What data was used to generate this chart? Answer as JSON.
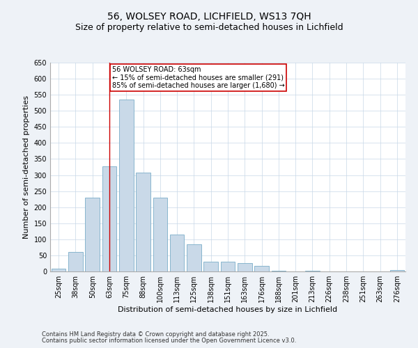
{
  "title1": "56, WOLSEY ROAD, LICHFIELD, WS13 7QH",
  "title2": "Size of property relative to semi-detached houses in Lichfield",
  "xlabel": "Distribution of semi-detached houses by size in Lichfield",
  "ylabel": "Number of semi-detached properties",
  "categories": [
    "25sqm",
    "38sqm",
    "50sqm",
    "63sqm",
    "75sqm",
    "88sqm",
    "100sqm",
    "113sqm",
    "125sqm",
    "138sqm",
    "151sqm",
    "163sqm",
    "176sqm",
    "188sqm",
    "201sqm",
    "213sqm",
    "226sqm",
    "238sqm",
    "251sqm",
    "263sqm",
    "276sqm"
  ],
  "values": [
    8,
    60,
    230,
    328,
    535,
    308,
    230,
    115,
    85,
    30,
    30,
    25,
    18,
    3,
    1,
    2,
    1,
    0,
    0,
    0,
    4
  ],
  "bar_color": "#c9d9e8",
  "bar_edge_color": "#7aaec8",
  "property_line_x": 3,
  "annotation_text": "56 WOLSEY ROAD: 63sqm\n← 15% of semi-detached houses are smaller (291)\n85% of semi-detached houses are larger (1,680) →",
  "annotation_box_color": "#ffffff",
  "annotation_edge_color": "#cc0000",
  "vline_color": "#cc0000",
  "ylim": [
    0,
    650
  ],
  "yticks": [
    0,
    50,
    100,
    150,
    200,
    250,
    300,
    350,
    400,
    450,
    500,
    550,
    600,
    650
  ],
  "footer1": "Contains HM Land Registry data © Crown copyright and database right 2025.",
  "footer2": "Contains public sector information licensed under the Open Government Licence v3.0.",
  "bg_color": "#eef2f7",
  "plot_bg_color": "#ffffff",
  "title_fontsize": 10,
  "subtitle_fontsize": 9,
  "tick_fontsize": 7,
  "ylabel_fontsize": 8,
  "xlabel_fontsize": 8,
  "annotation_fontsize": 7,
  "footer_fontsize": 6
}
